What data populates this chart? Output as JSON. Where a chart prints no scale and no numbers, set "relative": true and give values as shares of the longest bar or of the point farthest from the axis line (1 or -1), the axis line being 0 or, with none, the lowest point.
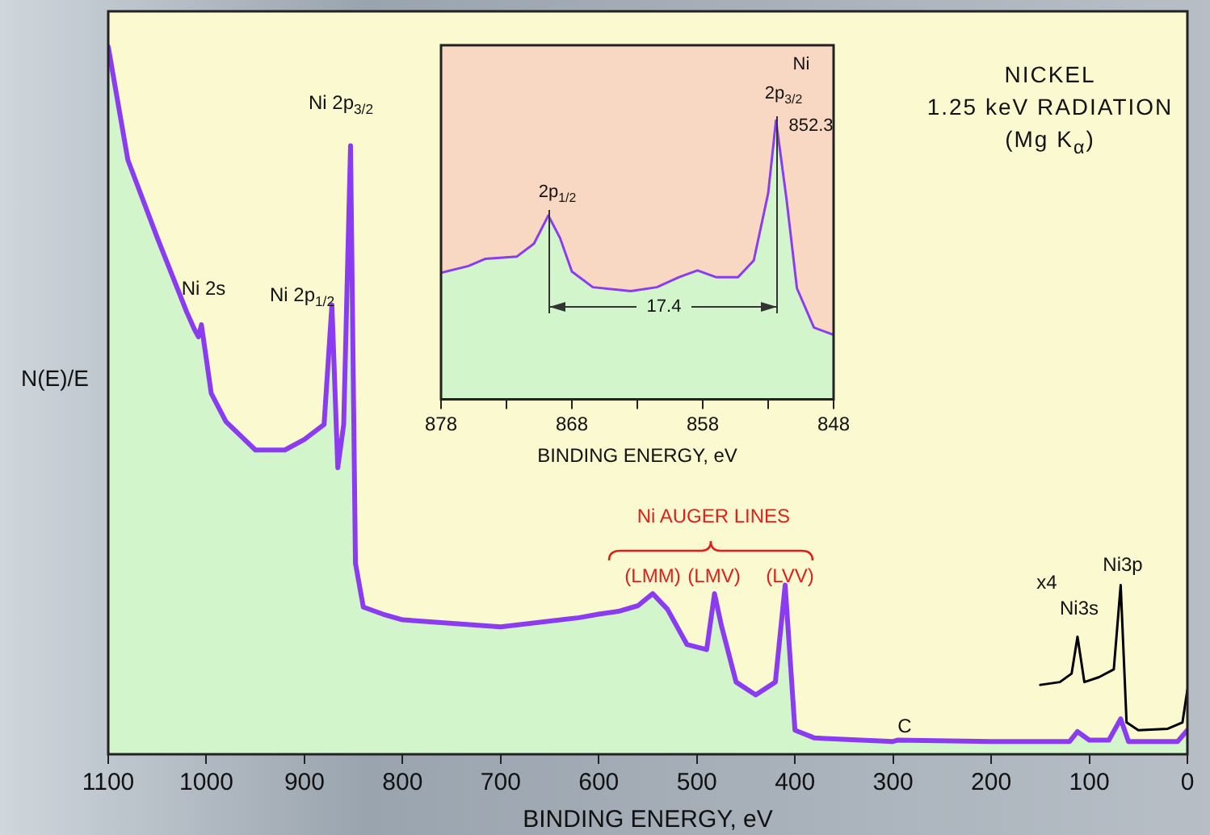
{
  "chart_data": [
    {
      "type": "line",
      "title": "NICKEL",
      "subtitle": "1.25 keV RADIATION\n(Mg K$_{α}$)",
      "xlabel": "BINDING ENERGY, eV",
      "ylabel": "N(E)/E",
      "relative": true,
      "tick_labels": "x",
      "xlim": [
        1100,
        0
      ],
      "xticks": [
        1100,
        1000,
        900,
        800,
        700,
        600,
        500,
        400,
        300,
        200,
        100,
        0
      ],
      "series": [
        {
          "type": "area",
          "color": "#d3f5cc",
          "x": [
            1100,
            1080,
            1050,
            1020,
            1012,
            1008,
            1005,
            995,
            980,
            950,
            920,
            900,
            880,
            872,
            866,
            860,
            853,
            848,
            840,
            820,
            800,
            700,
            620,
            600,
            580,
            560,
            545,
            530,
            510,
            490,
            482,
            475,
            460,
            440,
            420,
            410,
            400,
            380,
            300,
            295,
            200,
            120,
            112,
            100,
            80,
            68,
            60,
            10,
            0
          ],
          "values": [
            1.0,
            0.84,
            0.73,
            0.625,
            0.6,
            0.59,
            0.607,
            0.51,
            0.47,
            0.43,
            0.43,
            0.445,
            0.466,
            0.635,
            0.405,
            0.466,
            0.86,
            0.27,
            0.208,
            0.198,
            0.19,
            0.18,
            0.193,
            0.198,
            0.202,
            0.21,
            0.227,
            0.205,
            0.155,
            0.148,
            0.227,
            0.182,
            0.102,
            0.084,
            0.102,
            0.239,
            0.034,
            0.023,
            0.018,
            0.02,
            0.018,
            0.018,
            0.032,
            0.02,
            0.02,
            0.05,
            0.018,
            0.018,
            0.034
          ]
        },
        {
          "color": "#8b3cf0",
          "x": [
            1100,
            1080,
            1050,
            1020,
            1012,
            1008,
            1005,
            995,
            980,
            950,
            920,
            900,
            880,
            872,
            866,
            860,
            853,
            848,
            840,
            820,
            800,
            700,
            620,
            600,
            580,
            560,
            545,
            530,
            510,
            490,
            482,
            475,
            460,
            440,
            420,
            410,
            400,
            380,
            300,
            295,
            200,
            120,
            112,
            100,
            80,
            68,
            60,
            10,
            0
          ],
          "values": [
            1.0,
            0.84,
            0.73,
            0.625,
            0.6,
            0.59,
            0.607,
            0.51,
            0.47,
            0.43,
            0.43,
            0.445,
            0.466,
            0.635,
            0.405,
            0.466,
            0.86,
            0.27,
            0.208,
            0.198,
            0.19,
            0.18,
            0.193,
            0.198,
            0.202,
            0.21,
            0.227,
            0.205,
            0.155,
            0.148,
            0.227,
            0.182,
            0.102,
            0.084,
            0.102,
            0.239,
            0.034,
            0.023,
            0.018,
            0.02,
            0.018,
            0.018,
            0.032,
            0.02,
            0.02,
            0.05,
            0.018,
            0.018,
            0.034
          ]
        },
        {
          "color": "#000000",
          "x": [
            150,
            130,
            118,
            112,
            105,
            90,
            75,
            68,
            62,
            50,
            20,
            5,
            0
          ],
          "values": [
            0.098,
            0.102,
            0.114,
            0.166,
            0.102,
            0.109,
            0.12,
            0.239,
            0.045,
            0.034,
            0.036,
            0.045,
            0.091
          ]
        }
      ],
      "annotations": [
        "Ni 2s",
        "Ni 2p$_{1/2}$",
        "Ni 2p$_{3/2}$",
        "Ni AUGER LINES",
        "(LMM)",
        "(LMV)",
        "(LVV)",
        "C",
        "x4",
        "Ni3s",
        "Ni3p"
      ]
    },
    {
      "type": "line",
      "xlabel": "BINDING ENERGY, eV",
      "relative": true,
      "tick_labels": "x",
      "xlim": [
        878,
        848
      ],
      "xticks": [
        878,
        {
          "value": 873,
          "label": null
        },
        868,
        {
          "value": 863,
          "label": null
        },
        858,
        {
          "value": 853,
          "label": null
        },
        848
      ],
      "series": [
        {
          "type": "area",
          "color": "#d3f5cc",
          "x": [
            878,
            875.9,
            874.6,
            872.2,
            870.9,
            869.8,
            868.9,
            868,
            866.4,
            863.5,
            861.5,
            859.8,
            858.4,
            857,
            855.3,
            854.1,
            853,
            852.4,
            851.6,
            850.8,
            849.5,
            848
          ],
          "values": [
            0.454,
            0.478,
            0.504,
            0.512,
            0.558,
            0.659,
            0.578,
            0.458,
            0.402,
            0.388,
            0.402,
            0.438,
            0.462,
            0.438,
            0.438,
            0.498,
            0.739,
            1.0,
            0.719,
            0.398,
            0.257,
            0.231
          ]
        },
        {
          "color": "#8b3cf0",
          "x": [
            878,
            875.9,
            874.6,
            872.2,
            870.9,
            869.8,
            868.9,
            868,
            866.4,
            863.5,
            861.5,
            859.8,
            858.4,
            857,
            855.3,
            854.1,
            853,
            852.4,
            851.6,
            850.8,
            849.5,
            848
          ],
          "values": [
            0.454,
            0.478,
            0.504,
            0.512,
            0.558,
            0.659,
            0.578,
            0.458,
            0.402,
            0.388,
            0.402,
            0.438,
            0.462,
            0.438,
            0.438,
            0.498,
            0.739,
            1.0,
            0.719,
            0.398,
            0.257,
            0.231
          ]
        }
      ],
      "annotations": [
        "Ni",
        "2p$_{3/2}$",
        "852.3",
        "2p$_{1/2}$",
        "17.4"
      ]
    }
  ]
}
